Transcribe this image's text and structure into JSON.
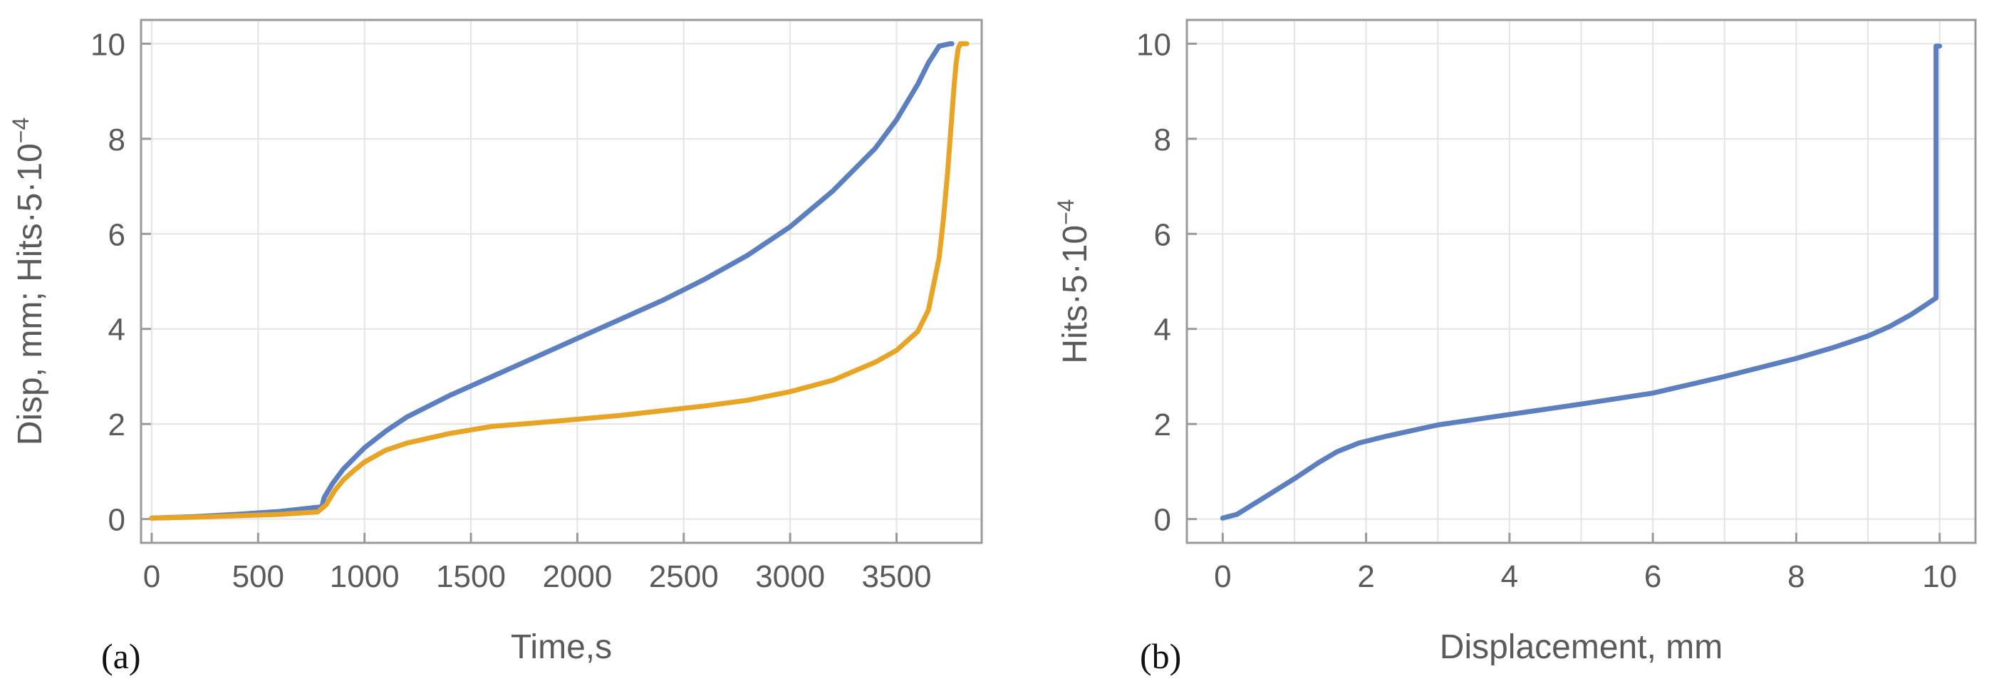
{
  "chart_data": [
    {
      "type": "line",
      "panel_label": "(a)",
      "xlabel": "Time,s",
      "ylabel": "Disp, mm; Hits·5·10",
      "ylabel_exp": "−4",
      "xlim": [
        -50,
        3900
      ],
      "ylim": [
        -0.5,
        10.5
      ],
      "xticks": [
        0,
        500,
        1000,
        1500,
        2000,
        2500,
        3000,
        3500
      ],
      "yticks": [
        0,
        2,
        4,
        6,
        8,
        10
      ],
      "xgrid": [
        0,
        500,
        1000,
        1500,
        2000,
        2500,
        3000,
        3500
      ],
      "ygrid": [
        0,
        2,
        4,
        6,
        8,
        10
      ],
      "grid": true,
      "series": [
        {
          "color": "#5b7fbf",
          "x": [
            0,
            200,
            400,
            600,
            800,
            810,
            850,
            900,
            1000,
            1100,
            1200,
            1400,
            1600,
            1800,
            2000,
            2200,
            2400,
            2600,
            2800,
            3000,
            3200,
            3400,
            3500,
            3600,
            3650,
            3700,
            3750,
            3760
          ],
          "y": [
            0.02,
            0.05,
            0.1,
            0.16,
            0.26,
            0.45,
            0.75,
            1.05,
            1.5,
            1.85,
            2.15,
            2.6,
            3.0,
            3.4,
            3.8,
            4.2,
            4.6,
            5.05,
            5.55,
            6.15,
            6.9,
            7.8,
            8.4,
            9.15,
            9.6,
            9.95,
            10,
            10
          ]
        },
        {
          "color": "#e8a425",
          "x": [
            0,
            200,
            400,
            600,
            780,
            820,
            860,
            900,
            950,
            1000,
            1100,
            1200,
            1400,
            1600,
            1800,
            2000,
            2200,
            2400,
            2600,
            2800,
            3000,
            3200,
            3400,
            3500,
            3600,
            3650,
            3700,
            3720,
            3740,
            3760,
            3770,
            3780,
            3790,
            3800,
            3810,
            3830
          ],
          "y": [
            0.02,
            0.04,
            0.07,
            0.1,
            0.15,
            0.3,
            0.6,
            0.82,
            1.02,
            1.2,
            1.45,
            1.6,
            1.8,
            1.95,
            2.02,
            2.1,
            2.18,
            2.28,
            2.38,
            2.5,
            2.68,
            2.92,
            3.3,
            3.55,
            3.95,
            4.4,
            5.5,
            6.3,
            7.3,
            8.5,
            9.1,
            9.6,
            9.9,
            10,
            10,
            10
          ]
        }
      ]
    },
    {
      "type": "line",
      "panel_label": "(b)",
      "xlabel": "Displacement, mm",
      "ylabel": "Hits·5·10",
      "ylabel_exp": "−4",
      "xlim": [
        -0.5,
        10.5
      ],
      "ylim": [
        -0.5,
        10.5
      ],
      "xticks": [
        0,
        2,
        4,
        6,
        8,
        10
      ],
      "yticks": [
        0,
        2,
        4,
        6,
        8,
        10
      ],
      "xgrid": [
        0,
        1,
        2,
        3,
        4,
        5,
        6,
        7,
        8,
        9,
        10
      ],
      "ygrid": [
        0,
        2,
        4,
        6,
        8,
        10
      ],
      "grid": true,
      "series": [
        {
          "color": "#5b7fbf",
          "x": [
            0,
            0.2,
            0.5,
            1.0,
            1.35,
            1.6,
            1.9,
            2.3,
            3.0,
            4.0,
            5.0,
            6.0,
            7.0,
            8.0,
            8.5,
            9.0,
            9.3,
            9.6,
            9.8,
            9.95,
            9.95,
            10.0
          ],
          "y": [
            0.02,
            0.1,
            0.38,
            0.85,
            1.2,
            1.42,
            1.6,
            1.75,
            1.98,
            2.2,
            2.42,
            2.65,
            3.0,
            3.38,
            3.6,
            3.85,
            4.05,
            4.3,
            4.5,
            4.65,
            9.95,
            9.95
          ]
        }
      ]
    }
  ]
}
